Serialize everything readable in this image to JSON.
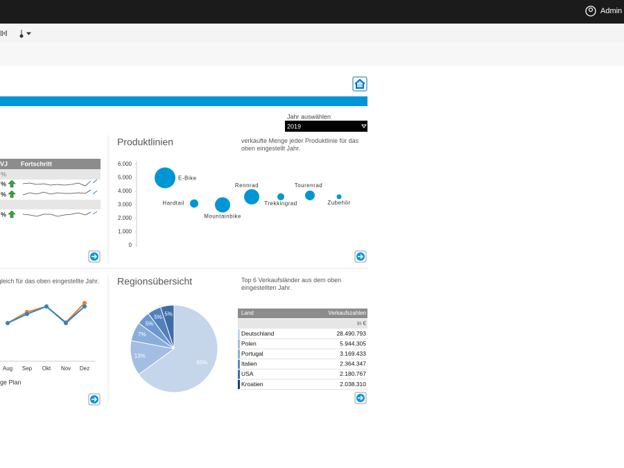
{
  "header": {
    "user": "Admin"
  },
  "year_selector": {
    "label": "Jahr auswählen",
    "value": "2019"
  },
  "kpi_table": {
    "columns": [
      "VJ",
      "Fortschritt"
    ],
    "rows": [
      "%",
      "%",
      "%",
      "%"
    ]
  },
  "chart_data": [
    {
      "type": "bubble",
      "title": "Produktlinien",
      "subtitle": "verkaufte Menge jeder Produktlinie für das oben eingestellt Jahr.",
      "categories": [
        "E-Bike",
        "Hardtail",
        "Mountainbike",
        "Rennrad",
        "Trekkingrad",
        "Tourenrad",
        "Zubehör"
      ],
      "values": [
        5000,
        3100,
        3000,
        3600,
        3600,
        3700,
        3600
      ],
      "sizes": [
        15,
        6,
        11,
        11,
        5,
        7,
        3.5
      ],
      "color": "#0096d6",
      "ylim": [
        0,
        6000
      ],
      "yticks": [
        0,
        {
          "value": 1000,
          "label": "1.000"
        },
        {
          "value": 2000,
          "label": "2.000"
        },
        {
          "value": 3000,
          "label": "3.000"
        },
        {
          "value": 4000,
          "label": "4.000"
        },
        {
          "value": 5000,
          "label": "5.000"
        },
        {
          "value": 6000,
          "label": "6.000"
        }
      ]
    },
    {
      "type": "line",
      "subtitle": "gleich für das oben eingestellte Jahr.",
      "categories": [
        "Aug",
        "Sep",
        "Okt",
        "Nov",
        "Dez"
      ],
      "series": [
        {
          "color": "#ed7d31",
          "values": [
            34,
            50,
            58,
            35,
            63
          ]
        },
        {
          "color": "#2e86c1",
          "values": [
            34,
            47,
            58,
            34,
            58
          ]
        }
      ],
      "legend_text": "ge Plan",
      "ylim": [
        0,
        80
      ]
    },
    {
      "type": "pie",
      "title": "Regionsübersicht",
      "subtitle": "Top 6 Verkaufsländer aus dem oben eingestellten Jahr.",
      "values": [
        65,
        13,
        7,
        5,
        5,
        5
      ],
      "value_labels": [
        "65%",
        "13%",
        "7%",
        "5%",
        "5%",
        "5%"
      ],
      "colors": [
        "#c5d5ea",
        "#a4bde2",
        "#8aaedb",
        "#6d98cf",
        "#5280bd",
        "#3e6da8"
      ]
    }
  ],
  "region_table": {
    "columns": [
      "Land",
      "Verkaufszahlen"
    ],
    "unit": "in €",
    "rows": [
      [
        "Deutschland",
        "28.490.793"
      ],
      [
        "Polen",
        "5.944.305"
      ],
      [
        "Portugal",
        "3.169.433"
      ],
      [
        "Italien",
        "2.364.347"
      ],
      [
        "USA",
        "2.180.767"
      ],
      [
        "Kroatien",
        "2.038.310"
      ]
    ],
    "colors": [
      "#c5d5ea",
      "#a4bde2",
      "#8aaedb",
      "#5d88c4",
      "#3e6da8",
      "#1f3f6e"
    ]
  }
}
